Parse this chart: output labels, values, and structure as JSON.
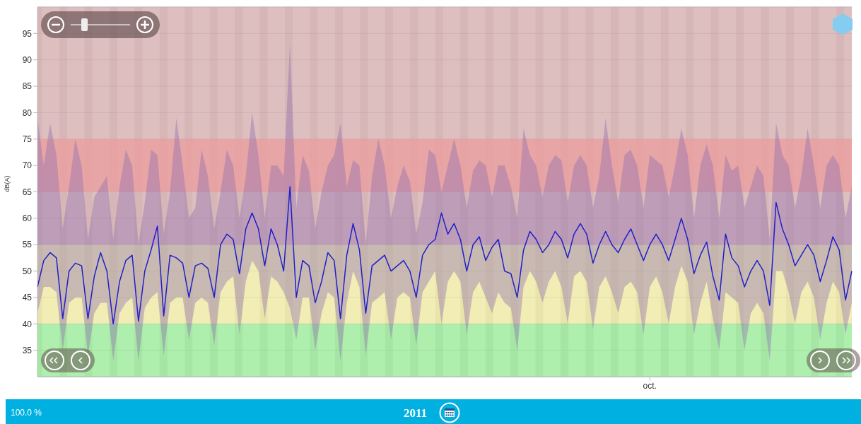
{
  "chart_data": {
    "type": "line",
    "ylabel": "dB(A)",
    "annotations": [
      "100.0 %",
      "2011"
    ],
    "categories": [
      null,
      null,
      null,
      null,
      null,
      null,
      null,
      null,
      null,
      null,
      null,
      null,
      null,
      null,
      null,
      null,
      null,
      null,
      null,
      null,
      null,
      null,
      null,
      null,
      null,
      null,
      null,
      null,
      null,
      null,
      null,
      null,
      null,
      null,
      null,
      null,
      null,
      null,
      null,
      null,
      null,
      null,
      null,
      null,
      null,
      null,
      null,
      null,
      null,
      null,
      null,
      null,
      null,
      null,
      null,
      null,
      null,
      null,
      null,
      null,
      null,
      null,
      null,
      null,
      null,
      null,
      null,
      null,
      null,
      null,
      null,
      null,
      null,
      null,
      null,
      null,
      null,
      null,
      null,
      null,
      null,
      null,
      null,
      null,
      null,
      null,
      null,
      null,
      null,
      null,
      null,
      null,
      null,
      null,
      null,
      null,
      null,
      "oct.",
      null,
      null,
      null,
      null,
      null,
      null,
      null,
      null,
      null,
      null,
      null,
      null,
      null,
      null,
      null,
      null,
      null,
      null,
      null,
      null,
      null,
      null,
      null,
      null,
      null,
      null,
      null,
      null,
      null,
      null,
      null,
      null
    ],
    "series": [
      {
        "color": "#2020c8",
        "values": [
          47,
          52,
          53.5,
          52.5,
          41,
          50,
          51.5,
          51,
          41,
          49,
          53.5,
          50,
          40,
          48,
          52,
          53,
          40.5,
          50,
          54,
          58.5,
          41.5,
          53,
          52.5,
          51.5,
          45,
          51,
          51.5,
          50.5,
          45,
          55,
          57,
          56,
          49.5,
          58,
          61,
          58,
          51,
          58,
          55,
          50,
          66,
          45,
          52,
          51,
          44,
          48,
          53.5,
          52,
          41,
          53,
          59,
          54,
          42,
          51,
          52,
          53,
          50,
          51,
          52,
          50,
          45,
          53,
          55,
          56,
          61,
          57,
          59,
          56,
          50,
          55,
          56.5,
          52,
          54.5,
          56,
          50,
          49.5,
          45,
          54,
          57.5,
          56,
          53.5,
          55,
          57.5,
          56,
          52.5,
          57,
          59,
          57,
          51.5,
          55,
          57.5,
          55,
          53.5,
          56,
          58,
          55,
          52,
          55,
          57,
          55,
          52,
          56,
          60,
          56,
          49.5,
          53,
          55.5,
          49,
          44.5,
          57,
          52.5,
          51,
          47,
          50,
          52,
          50,
          43.5,
          63,
          58,
          55,
          51,
          53,
          55,
          53,
          48,
          52,
          56.5,
          54,
          44.5,
          50
        ],
        "upper": [
          79,
          70,
          78,
          72,
          58,
          66,
          75,
          70,
          56,
          64,
          66,
          68,
          56,
          66,
          73,
          70,
          55,
          63,
          73,
          72,
          57,
          65,
          79,
          70,
          60,
          62,
          73,
          68,
          58,
          65,
          73,
          70,
          60,
          68,
          80,
          72,
          60,
          70,
          70,
          68,
          93,
          62,
          72,
          69,
          58,
          65,
          70,
          72,
          78,
          66,
          71,
          70,
          55,
          68,
          75,
          70,
          60,
          66,
          70,
          67,
          57,
          63,
          73,
          72,
          65,
          70,
          75,
          70,
          62,
          69,
          71,
          70,
          64,
          70,
          70,
          66,
          60,
          77,
          72,
          70,
          64,
          70,
          72,
          71,
          63,
          70,
          72,
          70,
          62,
          68,
          79,
          70,
          63,
          72,
          73,
          70,
          62,
          72,
          71,
          70,
          64,
          70,
          77,
          72,
          60,
          70,
          74,
          70,
          60,
          72,
          69,
          70,
          62,
          66,
          70,
          68,
          56,
          78,
          72,
          70,
          62,
          68,
          77,
          70,
          62,
          70,
          72,
          70,
          60,
          66
        ],
        "lower": [
          42,
          47,
          47,
          46,
          35,
          44,
          45,
          45,
          34,
          42,
          44,
          44,
          33,
          42,
          44,
          45,
          33,
          43,
          45,
          46,
          34,
          44,
          45,
          45,
          37,
          44,
          45,
          44,
          36,
          46,
          48,
          49,
          38,
          48,
          52,
          50,
          41,
          49,
          48,
          46,
          43,
          37,
          45,
          45,
          35,
          42,
          46,
          45,
          33,
          44,
          50,
          47,
          34,
          44,
          45,
          46,
          37,
          45,
          46,
          45,
          36,
          46,
          48,
          50,
          40,
          48,
          50,
          48,
          38,
          46,
          48,
          45,
          42,
          46,
          44,
          43,
          35,
          47,
          50,
          48,
          44,
          48,
          50,
          47,
          40,
          49,
          50,
          48,
          39,
          47,
          49,
          46,
          42,
          47,
          48,
          46,
          38,
          47,
          49,
          46,
          40,
          47,
          51,
          48,
          38,
          44,
          48,
          41,
          35,
          46,
          45,
          44,
          35,
          42,
          44,
          42,
          33,
          50,
          50,
          46,
          40,
          46,
          48,
          45,
          37,
          44,
          48,
          46,
          38,
          44
        ]
      }
    ],
    "ylim": [
      30,
      100
    ],
    "yticks": [
      35,
      40,
      45,
      50,
      55,
      60,
      65,
      70,
      75,
      80,
      85,
      90,
      95
    ],
    "grid": "y",
    "legend": false,
    "marker": "none",
    "bands": [
      {
        "axis": "y",
        "from": 55,
        "to": 100,
        "label": null,
        "color": "#d8b4b4"
      },
      {
        "axis": "y",
        "from": 65,
        "to": 75,
        "label": null,
        "color": "#eaa0a0"
      },
      {
        "axis": "y",
        "from": 40,
        "to": 55,
        "label": null,
        "color": "#eeeaa8"
      },
      {
        "axis": "y",
        "from": 30,
        "to": 40,
        "label": null,
        "color": "#a0eca0"
      }
    ]
  }
}
